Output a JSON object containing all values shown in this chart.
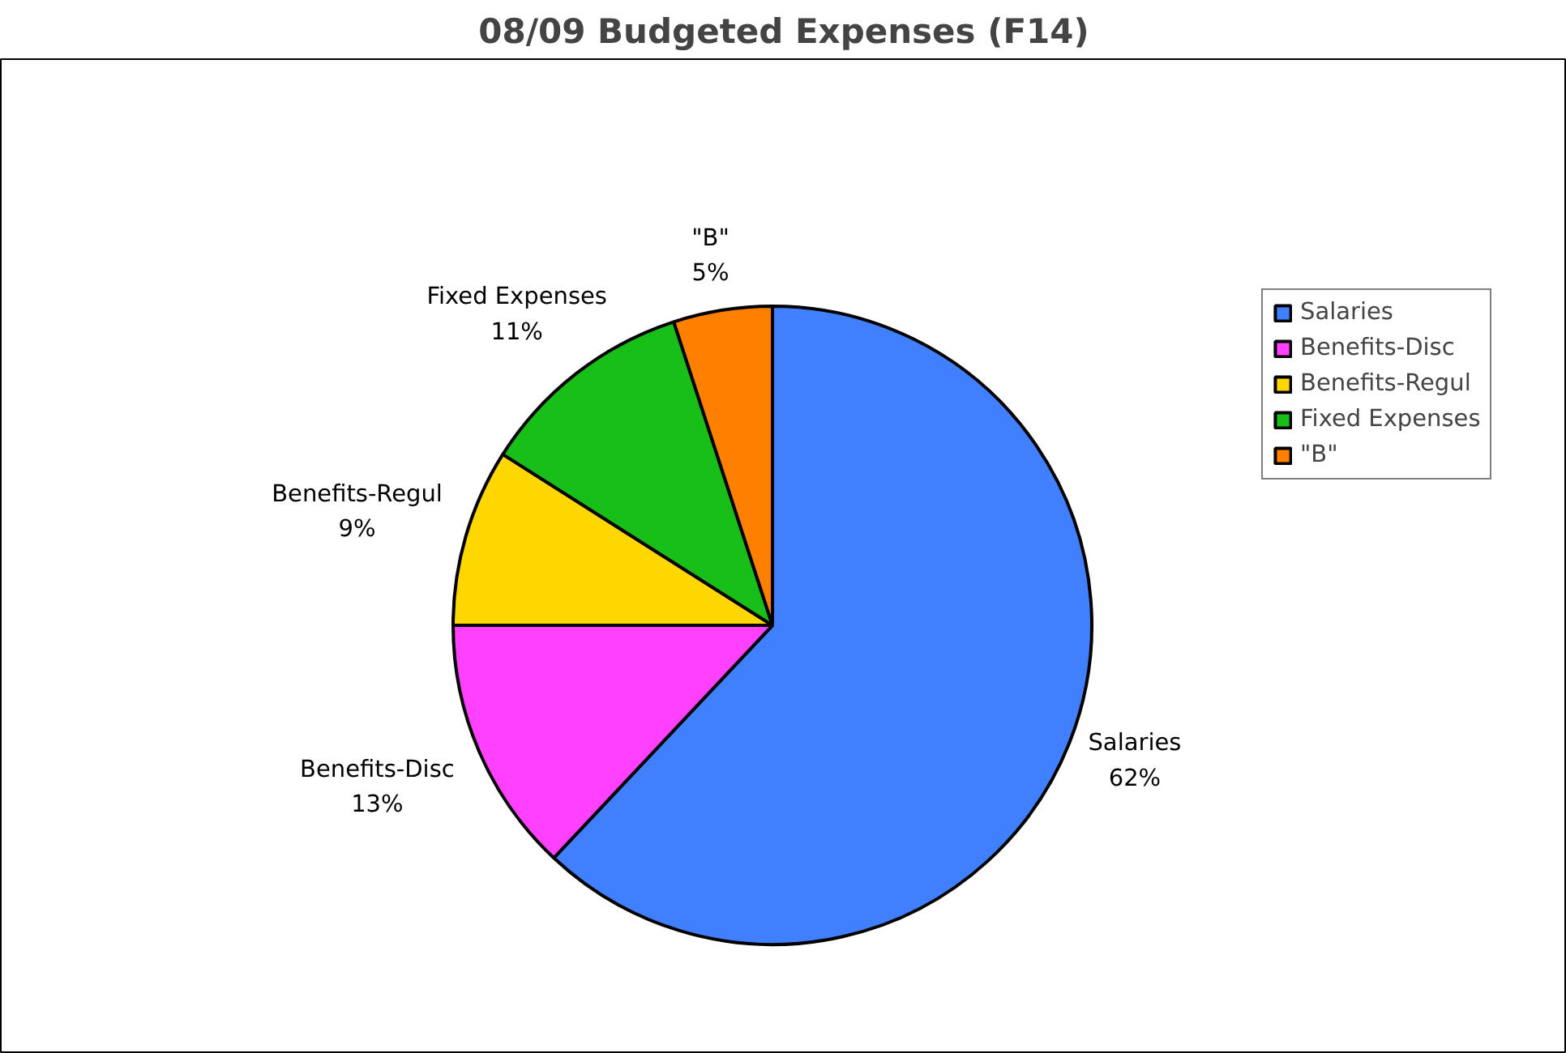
{
  "chart_data": {
    "type": "pie",
    "title": "08/09 Budgeted Expenses (F14)",
    "categories": [
      "Salaries",
      "Benefits-Disc",
      "Benefits-Regul",
      "Fixed Expenses",
      "\"B\""
    ],
    "values": [
      62,
      13,
      9,
      11,
      5
    ],
    "value_labels": [
      "62%",
      "13%",
      "9%",
      "11%",
      "5%"
    ],
    "colors": [
      "#4080ff",
      "#ff40ff",
      "#ffd700",
      "#19bf19",
      "#ff8000"
    ],
    "legend": "top right"
  }
}
